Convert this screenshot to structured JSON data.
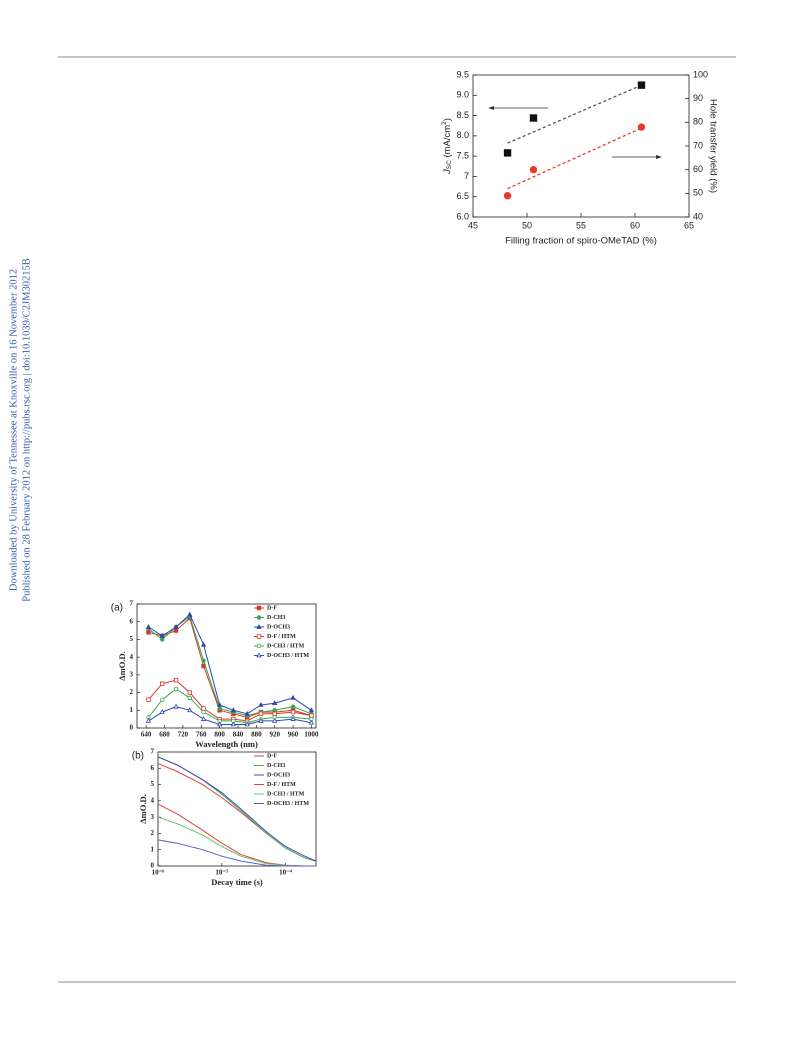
{
  "margin_notes": [
    "Downloaded by University of Tennessee at Knoxville on 16 November 2012",
    "Published on 28 February 2012 on http://pubs.rsc.org | doi:10.1039/C2JM30215B"
  ],
  "chart_data": [
    {
      "type": "scatter",
      "x_label": "Filling fraction of spiro-OMeTAD (%)",
      "y_label": {
        "symbol": "J",
        "sub": "SC",
        "unit": " (mA/cm",
        "sup": "2",
        "close": ")"
      },
      "y2_label": "Hole transfer yield (%)",
      "xlim": [
        45,
        65
      ],
      "xticks": [
        45,
        50,
        55,
        60,
        65
      ],
      "ylim": [
        6,
        9.5
      ],
      "yticks": [
        {
          "value": 6,
          "label": "6.0"
        },
        6.5,
        7,
        {
          "value": 7.5,
          "label": "7.5"
        },
        {
          "value": 8,
          "label": "8.0"
        },
        8.5,
        {
          "value": 9,
          "label": "9.0"
        },
        9.5
      ],
      "y2lim": [
        40,
        100
      ],
      "y2ticks": [
        40,
        50,
        60,
        70,
        80,
        90,
        100
      ],
      "series": [
        {
          "color": "#111111",
          "marker": "square",
          "x": [
            48.2,
            50.6,
            60.6
          ],
          "values": [
            7.58,
            8.44,
            9.25
          ]
        },
        {
          "color": "#e8382c",
          "marker": "circle",
          "axis": "y2",
          "x": [
            48.2,
            50.6,
            60.6
          ],
          "values": [
            49,
            60,
            78
          ]
        }
      ],
      "fit_lines": [
        {
          "color": "#555555",
          "x": [
            48.2,
            60.6
          ],
          "values": [
            7.82,
            9.25
          ]
        },
        {
          "color": "#e8382c",
          "axis": "y2",
          "x": [
            48.2,
            60.6
          ],
          "values": [
            52,
            77.6
          ]
        }
      ]
    },
    {
      "type": "line",
      "panel_label": "(a)",
      "x_label": "Wavelength (nm)",
      "y_label": "ΔmO.D.",
      "xlim": [
        620,
        1010
      ],
      "xticks": [
        640,
        680,
        720,
        760,
        800,
        840,
        880,
        920,
        960,
        1000
      ],
      "ylim": [
        0,
        7
      ],
      "yticks": [
        0,
        1,
        2,
        3,
        4,
        5,
        6,
        7
      ],
      "legend": "upper right",
      "x": [
        645,
        675,
        705,
        735,
        765,
        800,
        830,
        860,
        890,
        920,
        960,
        1000
      ],
      "series": [
        {
          "name": "D-F",
          "color": "#d9342b",
          "marker": "square",
          "marker_fill": "filled",
          "values": [
            5.4,
            5.2,
            5.5,
            6.2,
            3.5,
            1.0,
            0.8,
            0.6,
            0.9,
            0.9,
            1.0,
            0.7
          ]
        },
        {
          "name": "D-CH3",
          "color": "#3aa64a",
          "marker": "circle",
          "marker_fill": "filled",
          "values": [
            5.6,
            5.0,
            5.7,
            6.3,
            3.8,
            1.1,
            0.9,
            0.7,
            0.9,
            1.0,
            1.2,
            0.8
          ]
        },
        {
          "name": "D-OCH3",
          "color": "#2c48b0",
          "marker": "triangle",
          "marker_fill": "filled",
          "values": [
            5.7,
            5.2,
            5.7,
            6.4,
            4.7,
            1.3,
            1.0,
            0.8,
            1.3,
            1.4,
            1.7,
            1.0
          ]
        },
        {
          "name": "D-F / HTM",
          "color": "#d9342b",
          "marker": "square",
          "marker_fill": "open",
          "values": [
            1.6,
            2.5,
            2.7,
            2.0,
            1.1,
            0.5,
            0.5,
            0.4,
            0.8,
            0.8,
            0.9,
            0.7
          ]
        },
        {
          "name": "D-CH3 / HTM",
          "color": "#3aa64a",
          "marker": "circle",
          "marker_fill": "open",
          "values": [
            0.6,
            1.6,
            2.2,
            1.7,
            0.9,
            0.4,
            0.4,
            0.3,
            0.5,
            0.6,
            0.6,
            0.5
          ]
        },
        {
          "name": "D-OCH3 / HTM",
          "color": "#2c48b0",
          "marker": "triangle",
          "marker_fill": "open",
          "values": [
            0.4,
            0.9,
            1.2,
            1.0,
            0.5,
            0.2,
            0.2,
            0.2,
            0.4,
            0.4,
            0.5,
            0.3
          ]
        }
      ]
    },
    {
      "type": "line",
      "panel_label": "(b)",
      "x_label": "Decay time (s)",
      "y_label": "ΔmO.D.",
      "log_x": true,
      "xlim": [
        1e-06,
        0.0003
      ],
      "xticks": [
        {
          "value": 1e-06,
          "label": "10⁻⁶"
        },
        {
          "value": 1e-05,
          "label": "10⁻⁵"
        },
        {
          "value": 0.0001,
          "label": "10⁻⁴"
        }
      ],
      "ylim": [
        0,
        7
      ],
      "yticks": [
        0,
        1,
        2,
        3,
        4,
        5,
        6,
        7
      ],
      "legend": "upper right",
      "x": [
        1e-06,
        2e-06,
        5e-06,
        1e-05,
        2e-05,
        5e-05,
        0.0001,
        0.0002,
        0.0003
      ],
      "series": [
        {
          "name": "D-F",
          "color": "#e0453a",
          "values": [
            6.3,
            5.8,
            5.0,
            4.2,
            3.3,
            2.0,
            1.1,
            0.5,
            0.3
          ]
        },
        {
          "name": "D-CH3",
          "color": "#4dae57",
          "values": [
            6.7,
            6.2,
            5.3,
            4.4,
            3.4,
            2.0,
            1.1,
            0.5,
            0.3
          ]
        },
        {
          "name": "D-OCH3",
          "color": "#3a4fb8",
          "values": [
            6.7,
            6.2,
            5.3,
            4.5,
            3.5,
            2.1,
            1.2,
            0.6,
            0.3
          ]
        },
        {
          "name": "D-F / HTM",
          "color": "#e0453a",
          "values": [
            3.8,
            3.2,
            2.2,
            1.4,
            0.7,
            0.2,
            0.05,
            0,
            0
          ]
        },
        {
          "name": "D-CH3 / HTM",
          "color": "#6cc06f",
          "values": [
            3.0,
            2.6,
            1.9,
            1.2,
            0.6,
            0.15,
            0.03,
            0,
            0
          ]
        },
        {
          "name": "D-OCH3 / HTM",
          "color": "#5a5cc8",
          "values": [
            1.6,
            1.4,
            1.0,
            0.6,
            0.3,
            0.05,
            0,
            0,
            0
          ]
        }
      ]
    }
  ]
}
